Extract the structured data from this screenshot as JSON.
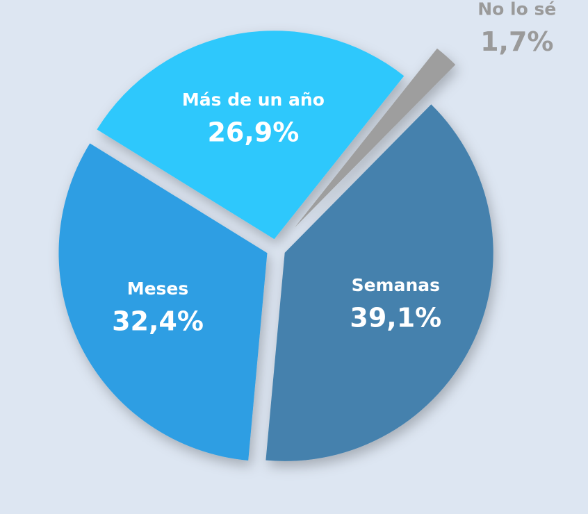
{
  "chart_data": {
    "type": "pie",
    "categories": [
      "Semanas",
      "Meses",
      "Más de un año",
      "No lo sé"
    ],
    "values": [
      39.1,
      32.4,
      26.9,
      1.7
    ],
    "value_labels": [
      "39,1%",
      "32,4%",
      "26,9%",
      "1,7%"
    ],
    "colors": [
      "#4581ad",
      "#2d9ee3",
      "#2ec8fc",
      "#9e9e9e"
    ]
  }
}
